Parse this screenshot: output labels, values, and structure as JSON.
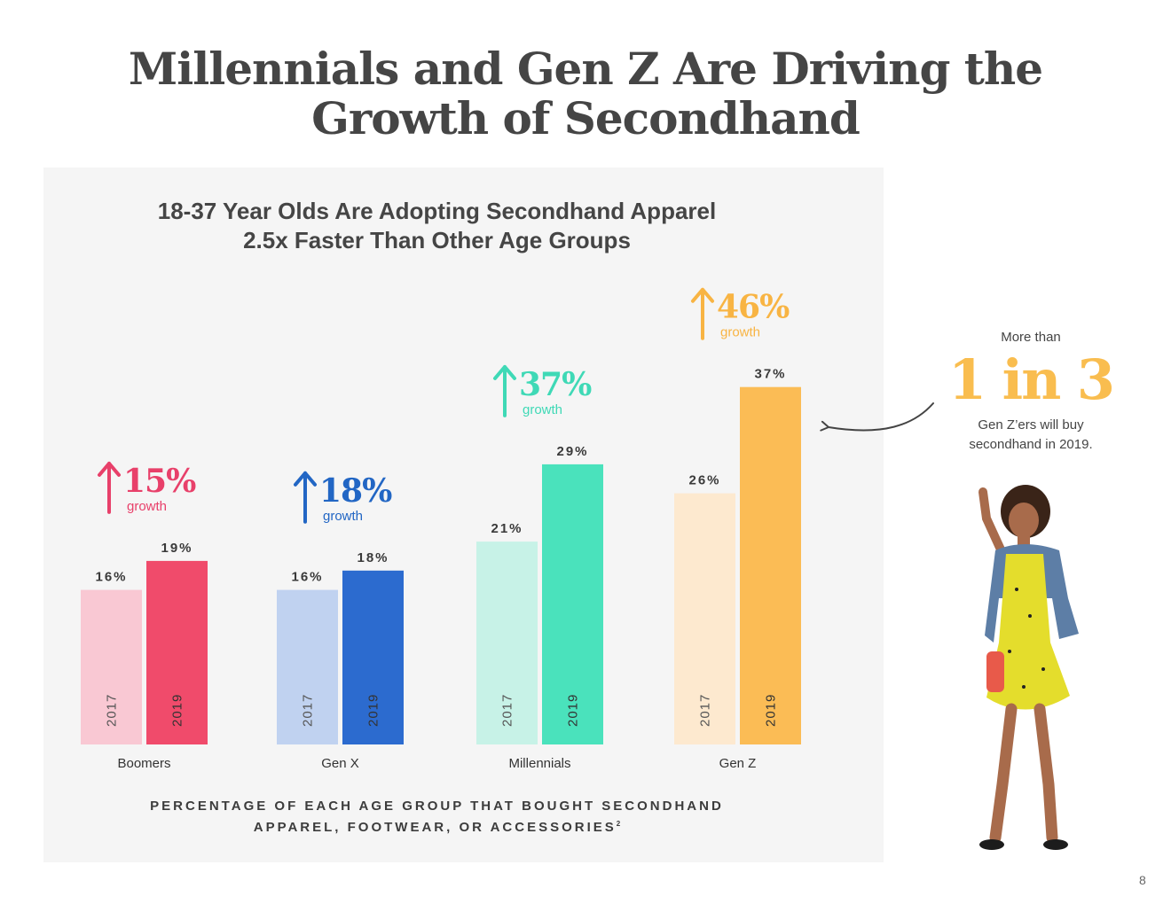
{
  "slide": {
    "title_line1": "Millennials and Gen Z Are Driving the",
    "title_line2": "Growth of Secondhand",
    "page_number": "8"
  },
  "callout": {
    "pre": "More than",
    "big": "1 in 3",
    "post_line1": "Gen Z’ers will buy",
    "post_line2": "secondhand in 2019."
  },
  "chart_data": {
    "type": "bar",
    "title_line1": "18-37 Year Olds Are Adopting Secondhand Apparel",
    "title_line2": "2.5x Faster Than Other Age Groups",
    "xlabel_line1": "PERCENTAGE OF EACH AGE GROUP THAT BOUGHT SECONDHAND",
    "xlabel_line2": "APPAREL, FOOTWEAR, OR ACCESSORIES",
    "xlabel_footnote": "2",
    "ylim": [
      0,
      40
    ],
    "categories": [
      "Boomers",
      "Gen X",
      "Millennials",
      "Gen Z"
    ],
    "series": [
      {
        "name": "2017",
        "values": [
          16,
          16,
          21,
          26
        ],
        "labels": [
          "16%",
          "16%",
          "21%",
          "26%"
        ]
      },
      {
        "name": "2019",
        "values": [
          19,
          18,
          29,
          37
        ],
        "labels": [
          "19%",
          "18%",
          "29%",
          "37%"
        ]
      }
    ],
    "growth": [
      "15%",
      "18%",
      "37%",
      "46%"
    ],
    "growth_word": "growth",
    "colors_2017": [
      "#f9c8d3",
      "#c0d2f0",
      "#c7f2e7",
      "#fde9cf"
    ],
    "colors_2019": [
      "#f04b6b",
      "#2c6bcf",
      "#4ae2bc",
      "#fbbc55"
    ],
    "growth_colors": [
      "#e8406a",
      "#2266c4",
      "#3fd9b6",
      "#f8b443"
    ]
  }
}
